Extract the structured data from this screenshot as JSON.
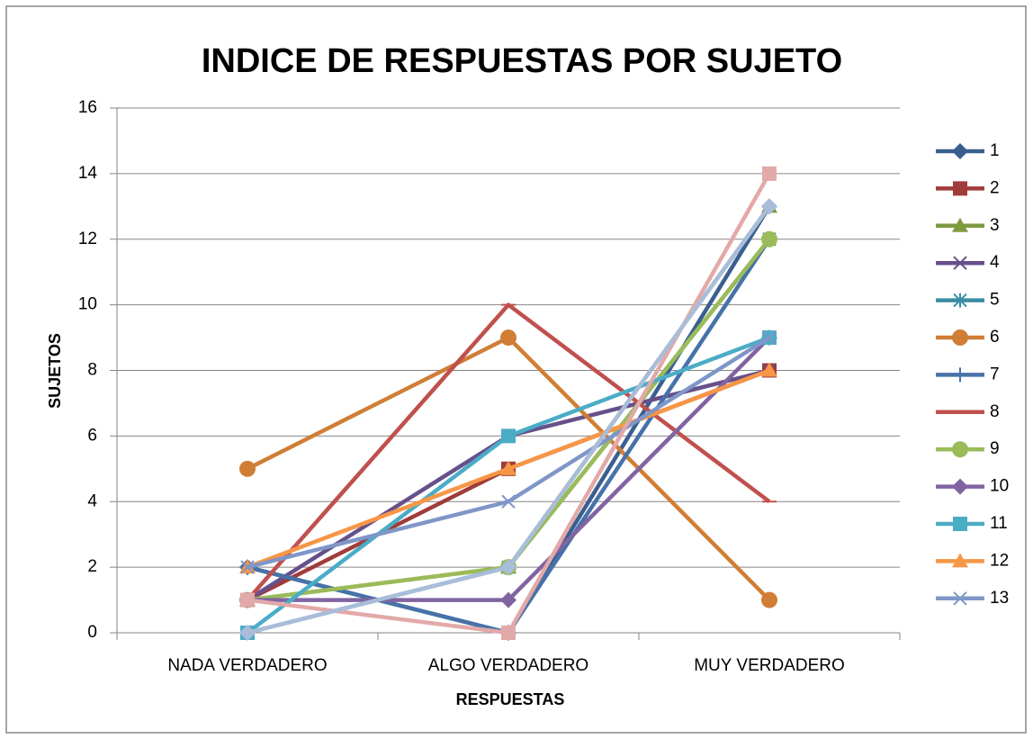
{
  "chart_data": {
    "type": "line",
    "title": "INDICE DE RESPUESTAS POR SUJETO",
    "x_label": "RESPUESTAS",
    "y_label": "SUJETOS",
    "categories": [
      "NADA VERDADERO",
      "ALGO VERDADERO",
      "MUY VERDADERO"
    ],
    "ylim": [
      0,
      16
    ],
    "yticks": [
      0,
      2,
      4,
      6,
      8,
      10,
      12,
      14,
      16
    ],
    "grid": true,
    "legend": "right",
    "series": [
      {
        "name": "1",
        "color": "#3a5f8f",
        "marker": "diamond",
        "values": [
          2,
          0,
          13
        ]
      },
      {
        "name": "2",
        "color": "#a03c3a",
        "marker": "square",
        "values": [
          1,
          5,
          8
        ]
      },
      {
        "name": "3",
        "color": "#7f9a3e",
        "marker": "triangle",
        "values": [
          1,
          2,
          13
        ]
      },
      {
        "name": "4",
        "color": "#66508a",
        "marker": "x",
        "values": [
          1,
          6,
          8
        ]
      },
      {
        "name": "5",
        "color": "#3a8ea2",
        "marker": "star",
        "values": [
          0,
          2,
          12
        ]
      },
      {
        "name": "6",
        "color": "#d07e35",
        "marker": "circle",
        "values": [
          5,
          9,
          1
        ]
      },
      {
        "name": "7",
        "color": "#4672a8",
        "marker": "plus",
        "values": [
          2,
          0,
          12
        ]
      },
      {
        "name": "8",
        "color": "#c0504d",
        "marker": "dash",
        "values": [
          1,
          10,
          4
        ]
      },
      {
        "name": "9",
        "color": "#9bbb59",
        "marker": "circle",
        "values": [
          1,
          2,
          12
        ]
      },
      {
        "name": "10",
        "color": "#8064a2",
        "marker": "diamond",
        "values": [
          1,
          1,
          9
        ]
      },
      {
        "name": "11",
        "color": "#4bacc6",
        "marker": "square",
        "values": [
          0,
          6,
          9
        ]
      },
      {
        "name": "12",
        "color": "#f79646",
        "marker": "triangle",
        "values": [
          2,
          5,
          8
        ]
      },
      {
        "name": "13",
        "color": "#7f96c8",
        "marker": "x",
        "values": [
          2,
          4,
          9
        ]
      },
      {
        "name": null,
        "color": "#e2a9a8",
        "marker": "square",
        "values": [
          1,
          0,
          14
        ]
      },
      {
        "name": null,
        "color": "#a9bddb",
        "marker": "diamond",
        "values": [
          0,
          2,
          13
        ]
      }
    ]
  }
}
